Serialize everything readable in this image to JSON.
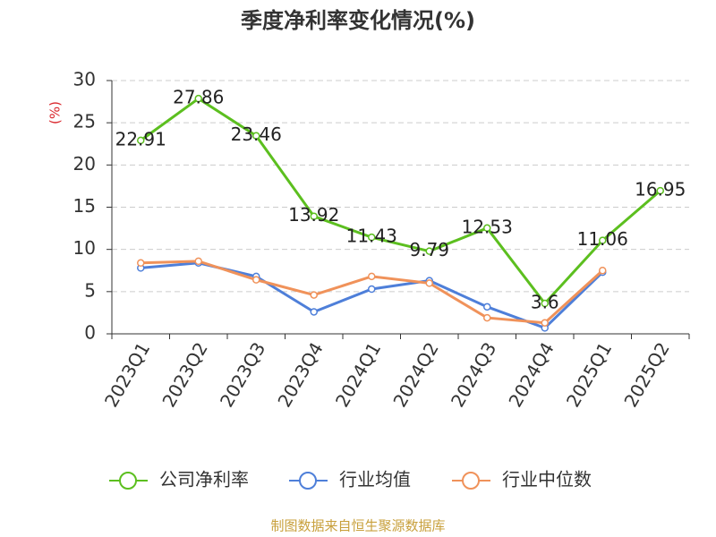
{
  "chart_data": {
    "type": "line",
    "title": "季度净利率变化情况(%)",
    "y_label": "(%)",
    "categories": [
      "2023Q1",
      "2023Q2",
      "2023Q3",
      "2023Q4",
      "2024Q1",
      "2024Q2",
      "2024Q3",
      "2024Q4",
      "2025Q1",
      "2025Q2"
    ],
    "series": [
      {
        "name": "公司净利率",
        "color": "#5cbf1f",
        "values": [
          22.91,
          27.86,
          23.46,
          13.92,
          11.43,
          9.79,
          12.53,
          3.6,
          11.06,
          16.95
        ],
        "show_labels": true
      },
      {
        "name": "行业均值",
        "color": "#4e7fd9",
        "values": [
          7.8,
          8.4,
          6.8,
          2.6,
          5.3,
          6.3,
          3.2,
          0.7,
          7.3,
          null
        ]
      },
      {
        "name": "行业中位数",
        "color": "#f0925a",
        "values": [
          8.4,
          8.6,
          6.4,
          4.6,
          6.8,
          6.0,
          1.9,
          1.3,
          7.5,
          null
        ]
      }
    ],
    "ylim": [
      0,
      30
    ],
    "yticks": [
      0,
      5,
      10,
      15,
      20,
      25,
      30
    ],
    "grid": true,
    "legend": "bottom",
    "source": "制图数据来自恒生聚源数据库"
  }
}
